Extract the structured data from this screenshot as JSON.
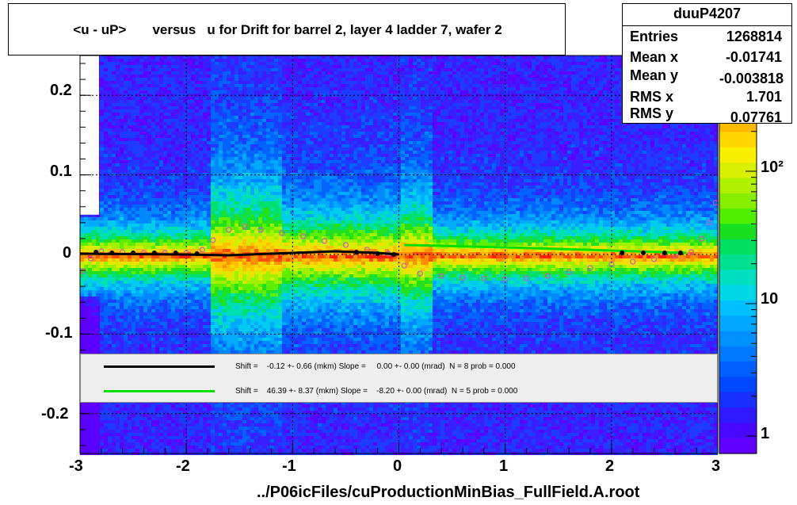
{
  "title": "<u - uP>       versus   u for Drift for barrel 2, layer 4 ladder 7, wafer 2",
  "stats": {
    "name": "duuP4207",
    "rows": [
      {
        "label": "Entries",
        "value": "1268814"
      },
      {
        "label": "Mean x",
        "value": "-0.01741"
      },
      {
        "label": "Mean y",
        "value": "-0.003818"
      },
      {
        "label": "RMS x",
        "value": "1.701"
      },
      {
        "label": "RMS y",
        "value": "0.07761"
      }
    ]
  },
  "legend": [
    {
      "text": "Shift =    -0.12 +- 0.66 (mkm) Slope =     0.00 +- 0.00 (mrad)  N = 8 prob = 0.000",
      "color": "#000000"
    },
    {
      "text": "Shift =    46.39 +- 8.37 (mkm) Slope =    -8.20 +- 0.00 (mrad)  N = 5 prob = 0.000",
      "color": "#00e000"
    }
  ],
  "x_axis_title": "../P06icFiles/cuProductionMinBias_FullField.A.root",
  "chart_data": {
    "type": "heatmap",
    "xlim": [
      -3,
      3
    ],
    "ylim": [
      -0.25,
      0.25
    ],
    "x_ticks": [
      -3,
      -2,
      -1,
      0,
      1,
      2,
      3
    ],
    "x_tick_labels": [
      "-3",
      "-2",
      "-1",
      "0",
      "1",
      "2",
      "3"
    ],
    "y_ticks": [
      -0.2,
      -0.1,
      0,
      0.1,
      0.2
    ],
    "y_tick_labels": [
      "-0.2",
      "-0.1",
      "0",
      "0.1",
      "0.2"
    ],
    "grid": true,
    "colorbar": {
      "scale": "log",
      "ticks": [
        1,
        10,
        100
      ],
      "tick_labels": [
        "1",
        "10",
        "10²"
      ]
    },
    "profile_markers": {
      "color": "#c060c0",
      "points": [
        [
          -2.97,
          -0.021
        ],
        [
          -2.9,
          -0.005
        ],
        [
          -2.8,
          0.004
        ],
        [
          -2.6,
          0.003
        ],
        [
          -2.4,
          0.002
        ],
        [
          -2.2,
          0.002
        ],
        [
          -2.0,
          0.002
        ],
        [
          -1.85,
          0.006
        ],
        [
          -1.75,
          0.018
        ],
        [
          -1.6,
          0.031
        ],
        [
          -1.45,
          0.035
        ],
        [
          -1.3,
          0.031
        ],
        [
          -1.1,
          0.027
        ],
        [
          -0.9,
          0.023
        ],
        [
          -0.7,
          0.017
        ],
        [
          -0.5,
          0.012
        ],
        [
          -0.3,
          0.006
        ],
        [
          -0.1,
          0.001
        ],
        [
          0.05,
          -0.014
        ],
        [
          0.2,
          -0.024
        ],
        [
          0.4,
          -0.027
        ],
        [
          0.6,
          -0.029
        ],
        [
          0.8,
          -0.03
        ],
        [
          1.0,
          -0.031
        ],
        [
          1.2,
          -0.03
        ],
        [
          1.4,
          -0.027
        ],
        [
          1.6,
          -0.022
        ],
        [
          1.8,
          -0.017
        ],
        [
          2.0,
          -0.012
        ],
        [
          2.2,
          -0.009
        ],
        [
          2.4,
          -0.006
        ],
        [
          2.6,
          -0.002
        ],
        [
          2.75,
          0.003
        ],
        [
          2.85,
          0.02
        ],
        [
          2.92,
          0.04
        ],
        [
          2.98,
          0.065
        ]
      ]
    },
    "fit_points": {
      "color": "#000000",
      "points": [
        [
          -2.85,
          0.003
        ],
        [
          -2.7,
          0.002
        ],
        [
          -2.5,
          0.002
        ],
        [
          -2.3,
          0.002
        ],
        [
          -2.1,
          0.002
        ],
        [
          -1.9,
          0.001
        ],
        [
          -0.4,
          0.003
        ],
        [
          -0.2,
          0.001
        ],
        [
          -0.05,
          0.0
        ],
        [
          2.1,
          0.002
        ],
        [
          2.3,
          0.002
        ],
        [
          2.5,
          0.002
        ],
        [
          2.65,
          0.002
        ]
      ]
    },
    "series": [
      {
        "color": "#000000",
        "points": [
          [
            -3.0,
            0.001
          ],
          [
            -2.0,
            0.0
          ],
          [
            -1.6,
            -0.001
          ],
          [
            -1.0,
            0.002
          ],
          [
            -0.6,
            0.004
          ],
          [
            -0.2,
            0.002
          ],
          [
            0.0,
            0.0
          ]
        ]
      },
      {
        "color": "#00e000",
        "points": [
          [
            0.05,
            0.012
          ],
          [
            1.0,
            0.009
          ],
          [
            2.0,
            0.005
          ],
          [
            2.7,
            0.002
          ]
        ]
      }
    ]
  }
}
